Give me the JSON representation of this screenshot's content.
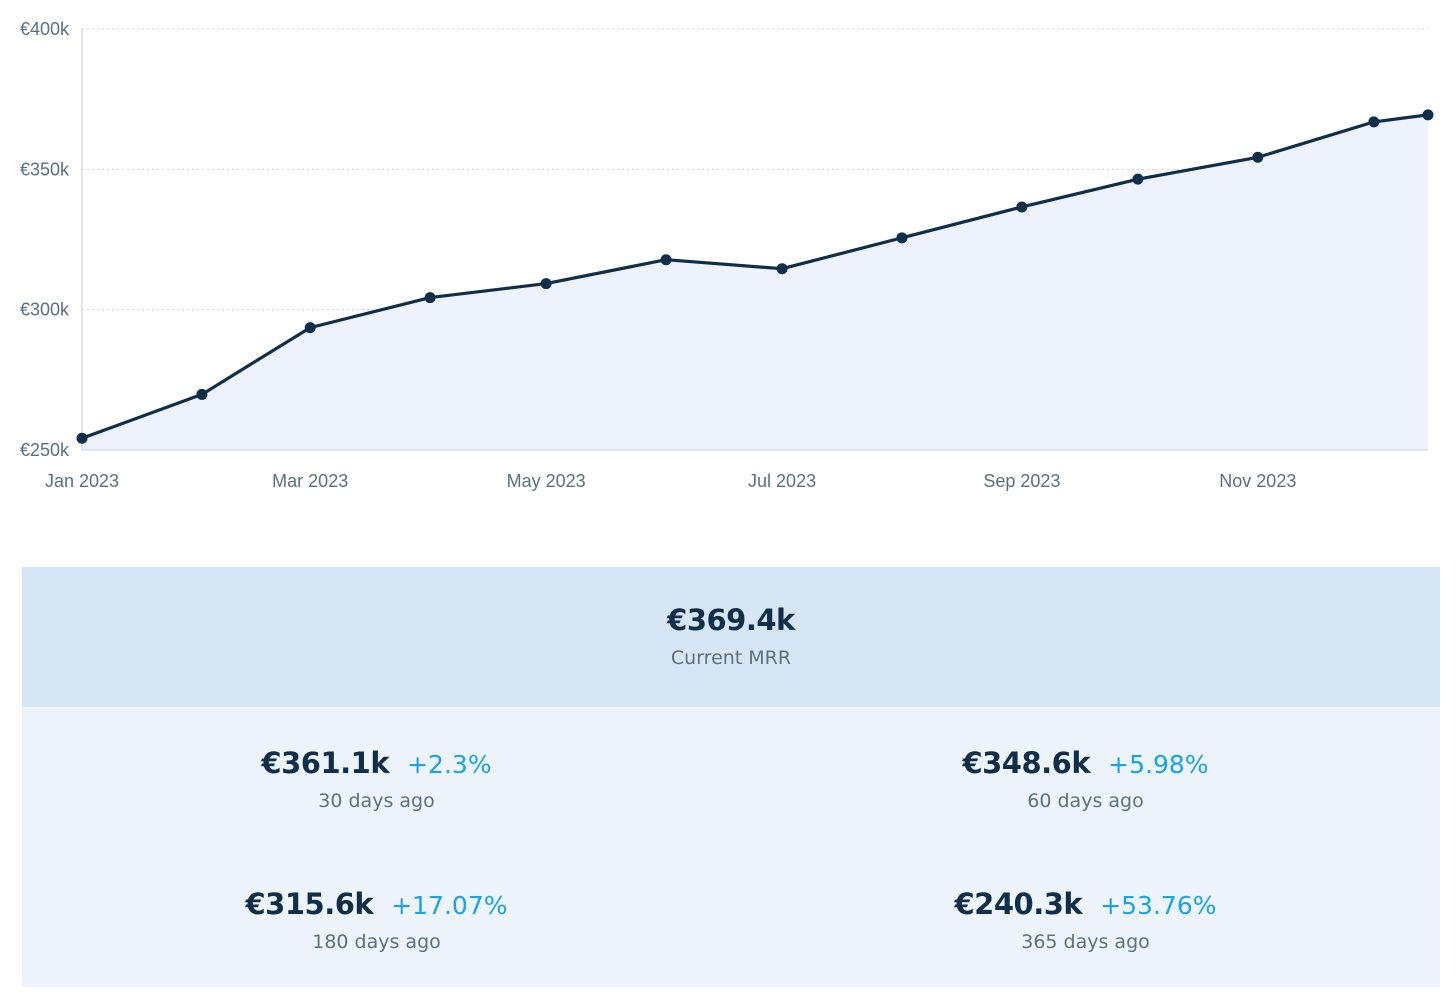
{
  "chart_data": {
    "type": "area",
    "x": [
      "2023-01-01",
      "2023-02-01",
      "2023-03-01",
      "2023-04-01",
      "2023-05-01",
      "2023-06-01",
      "2023-07-01",
      "2023-08-01",
      "2023-09-01",
      "2023-10-01",
      "2023-11-01",
      "2023-12-01",
      "2023-12-15"
    ],
    "values": [
      254.2,
      269.8,
      293.6,
      304.3,
      309.3,
      317.8,
      314.6,
      325.6,
      336.6,
      346.5,
      354.3,
      366.9,
      369.4
    ],
    "x_tick_labels": [
      "Jan 2023",
      "Mar 2023",
      "May 2023",
      "Jul 2023",
      "Sep 2023",
      "Nov 2023"
    ],
    "x_tick_dates": [
      "2023-01-01",
      "2023-03-01",
      "2023-05-01",
      "2023-07-01",
      "2023-09-01",
      "2023-11-01"
    ],
    "y_ticks": [
      250,
      300,
      350,
      400
    ],
    "y_tick_labels": [
      "€250k",
      "€300k",
      "€350k",
      "€400k"
    ],
    "ylim": [
      250,
      400
    ],
    "xlim": [
      "2023-01-01",
      "2023-12-15"
    ],
    "grid": true,
    "colors": {
      "line": "#0f2e4a",
      "fill": "#eef2fd",
      "grid": "#c9d3dd",
      "axis": "#d5dde6"
    }
  },
  "summary": {
    "current": {
      "value": "€369.4k",
      "label": "Current MRR"
    },
    "comparisons": [
      {
        "value": "€361.1k",
        "change": "+2.3%",
        "label": "30 days ago"
      },
      {
        "value": "€348.6k",
        "change": "+5.98%",
        "label": "60 days ago"
      },
      {
        "value": "€315.6k",
        "change": "+17.07%",
        "label": "180 days ago"
      },
      {
        "value": "€240.3k",
        "change": "+53.76%",
        "label": "365 days ago"
      }
    ],
    "colors": {
      "value": "#0f2e4a",
      "change": "#1aa3e8",
      "panel": "#eef4fb",
      "current_panel": "#d7e6f5"
    }
  }
}
